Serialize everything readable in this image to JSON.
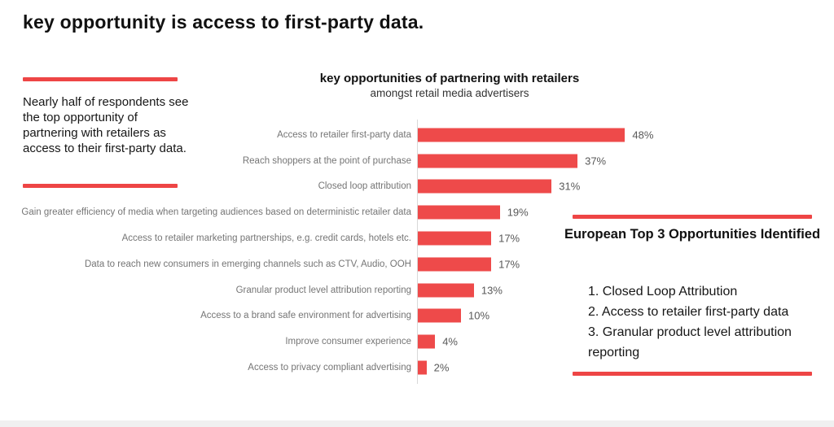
{
  "page": {
    "title": "key opportunity is access to first-party data.",
    "accent_color": "#ee4545",
    "footer_strip_color": "#f0f0f0"
  },
  "left_note": {
    "text": "Nearly half of respondents see the top opportunity of partnering with retailers as access to their first-party data."
  },
  "chart_data": {
    "type": "bar",
    "orientation": "horizontal",
    "title": "key opportunities of partnering with retailers",
    "subtitle": "amongst retail media advertisers",
    "unit": "%",
    "xlim": [
      0,
      50
    ],
    "grid": false,
    "legend": false,
    "bar_color": "#ee4a4a",
    "axis_line_color": "#d8d8d8",
    "categories": [
      "Access to retailer first-party data",
      "Reach shoppers at the point of purchase",
      "Closed loop attribution",
      "Gain greater efficiency of media when targeting audiences based on deterministic retailer data",
      "Access to retailer marketing partnerships, e.g. credit cards, hotels etc.",
      "Data to reach new consumers in emerging channels such as CTV, Audio, OOH",
      "Granular product level attribution reporting",
      "Access to a brand safe environment for advertising",
      "Improve consumer experience",
      "Access to privacy compliant advertising"
    ],
    "values": [
      48,
      37,
      31,
      19,
      17,
      17,
      13,
      10,
      4,
      2
    ],
    "value_labels": [
      "48%",
      "37%",
      "31%",
      "19%",
      "17%",
      "17%",
      "13%",
      "10%",
      "4%",
      "2%"
    ]
  },
  "highlight_box": {
    "title": "European Top 3 Opportunities Identified",
    "items": [
      "1. Closed Loop Attribution",
      "2. Access to retailer first-party data",
      "3. Granular product level attribution reporting"
    ]
  }
}
